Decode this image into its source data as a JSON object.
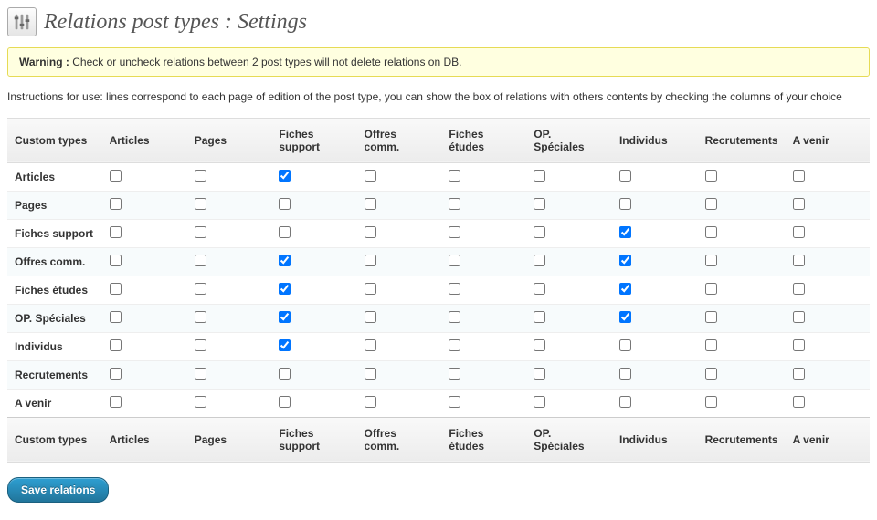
{
  "header": {
    "title": "Relations post types : Settings"
  },
  "warning": {
    "label": "Warning :",
    "text": " Check or uncheck relations between 2 post types will not delete relations on DB."
  },
  "instructions": "Instructions for use: lines correspond to each page of edition of the post type, you can show the box of relations with others contents by checking the columns of your choice",
  "columns": [
    "Custom types",
    "Articles",
    "Pages",
    "Fiches support",
    "Offres comm.",
    "Fiches études",
    "OP. Spéciales",
    "Individus",
    "Recrutements",
    "A venir"
  ],
  "rows": [
    {
      "label": "Articles",
      "cells": [
        false,
        false,
        true,
        false,
        false,
        false,
        false,
        false,
        false
      ]
    },
    {
      "label": "Pages",
      "cells": [
        false,
        false,
        false,
        false,
        false,
        false,
        false,
        false,
        false
      ]
    },
    {
      "label": "Fiches support",
      "cells": [
        false,
        false,
        false,
        false,
        false,
        false,
        true,
        false,
        false
      ]
    },
    {
      "label": "Offres comm.",
      "cells": [
        false,
        false,
        true,
        false,
        false,
        false,
        true,
        false,
        false
      ]
    },
    {
      "label": "Fiches études",
      "cells": [
        false,
        false,
        true,
        false,
        false,
        false,
        true,
        false,
        false
      ]
    },
    {
      "label": "OP. Spéciales",
      "cells": [
        false,
        false,
        true,
        false,
        false,
        false,
        true,
        false,
        false
      ]
    },
    {
      "label": "Individus",
      "cells": [
        false,
        false,
        true,
        false,
        false,
        false,
        false,
        false,
        false
      ]
    },
    {
      "label": "Recrutements",
      "cells": [
        false,
        false,
        false,
        false,
        false,
        false,
        false,
        false,
        false
      ]
    },
    {
      "label": "A venir",
      "cells": [
        false,
        false,
        false,
        false,
        false,
        false,
        false,
        false,
        false
      ]
    }
  ],
  "submit": {
    "label": "Save relations"
  },
  "colors": {
    "warning_bg": "#ffffe0",
    "warning_border": "#e6db55",
    "row_alt_bg": "#f7fbfc",
    "button_bg_top": "#2e9fd2",
    "button_bg_bottom": "#21759b"
  }
}
